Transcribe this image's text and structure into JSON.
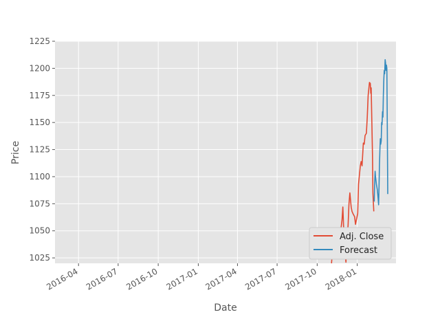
{
  "chart_data": {
    "type": "line",
    "title": "",
    "xlabel": "Date",
    "ylabel": "Price",
    "xlim": [
      "2016-02-07",
      "2018-03-31"
    ],
    "ylim": [
      1020,
      1225
    ],
    "x_ticks": [
      "2016-04",
      "2016-07",
      "2016-10",
      "2017-01",
      "2017-04",
      "2017-07",
      "2017-10",
      "2018-01"
    ],
    "y_ticks": [
      1025,
      1050,
      1075,
      1100,
      1125,
      1150,
      1175,
      1200,
      1225
    ],
    "grid": true,
    "legend": "lower-right",
    "series": [
      {
        "name": "Adj. Close",
        "color": "#E24A33",
        "points": [
          [
            "2017-11-03",
            1020
          ],
          [
            "2017-11-06",
            1035
          ],
          [
            "2017-11-08",
            1045
          ],
          [
            "2017-11-10",
            1050
          ],
          [
            "2017-11-13",
            1052
          ],
          [
            "2017-11-15",
            1040
          ],
          [
            "2017-11-17",
            1025
          ],
          [
            "2017-11-20",
            1032
          ],
          [
            "2017-11-22",
            1040
          ],
          [
            "2017-11-24",
            1050
          ],
          [
            "2017-11-27",
            1060
          ],
          [
            "2017-11-29",
            1072
          ],
          [
            "2017-12-01",
            1050
          ],
          [
            "2017-12-04",
            1030
          ],
          [
            "2017-12-06",
            1021
          ],
          [
            "2017-12-08",
            1040
          ],
          [
            "2017-12-11",
            1055
          ],
          [
            "2017-12-13",
            1075
          ],
          [
            "2017-12-15",
            1085
          ],
          [
            "2017-12-18",
            1072
          ],
          [
            "2017-12-20",
            1068
          ],
          [
            "2017-12-22",
            1066
          ],
          [
            "2017-12-26",
            1063
          ],
          [
            "2017-12-28",
            1056
          ],
          [
            "2018-01-02",
            1066
          ],
          [
            "2018-01-04",
            1093
          ],
          [
            "2018-01-08",
            1110
          ],
          [
            "2018-01-10",
            1114
          ],
          [
            "2018-01-12",
            1110
          ],
          [
            "2018-01-15",
            1131
          ],
          [
            "2018-01-17",
            1130
          ],
          [
            "2018-01-19",
            1138
          ],
          [
            "2018-01-22",
            1140
          ],
          [
            "2018-01-24",
            1155
          ],
          [
            "2018-01-26",
            1175
          ],
          [
            "2018-01-29",
            1187
          ],
          [
            "2018-01-31",
            1186
          ],
          [
            "2018-02-01",
            1177
          ],
          [
            "2018-02-02",
            1182
          ],
          [
            "2018-02-05",
            1120
          ],
          [
            "2018-02-06",
            1085
          ],
          [
            "2018-02-08",
            1068
          ]
        ]
      },
      {
        "name": "Forecast",
        "color": "#348ABD",
        "points": [
          [
            "2018-02-09",
            1077
          ],
          [
            "2018-02-10",
            1095
          ],
          [
            "2018-02-11",
            1105
          ],
          [
            "2018-02-12",
            1100
          ],
          [
            "2018-02-14",
            1093
          ],
          [
            "2018-02-16",
            1088
          ],
          [
            "2018-02-18",
            1080
          ],
          [
            "2018-02-19",
            1074
          ],
          [
            "2018-02-20",
            1090
          ],
          [
            "2018-02-21",
            1110
          ],
          [
            "2018-02-22",
            1125
          ],
          [
            "2018-02-23",
            1135
          ],
          [
            "2018-02-24",
            1130
          ],
          [
            "2018-02-25",
            1133
          ],
          [
            "2018-02-26",
            1150
          ],
          [
            "2018-02-27",
            1148
          ],
          [
            "2018-02-28",
            1160
          ],
          [
            "2018-03-01",
            1155
          ],
          [
            "2018-03-02",
            1175
          ],
          [
            "2018-03-03",
            1190
          ],
          [
            "2018-03-04",
            1198
          ],
          [
            "2018-03-05",
            1195
          ],
          [
            "2018-03-06",
            1208
          ],
          [
            "2018-03-07",
            1205
          ],
          [
            "2018-03-08",
            1198
          ],
          [
            "2018-03-09",
            1203
          ],
          [
            "2018-03-10",
            1200
          ],
          [
            "2018-03-11",
            1150
          ],
          [
            "2018-03-12",
            1084
          ]
        ]
      }
    ]
  }
}
